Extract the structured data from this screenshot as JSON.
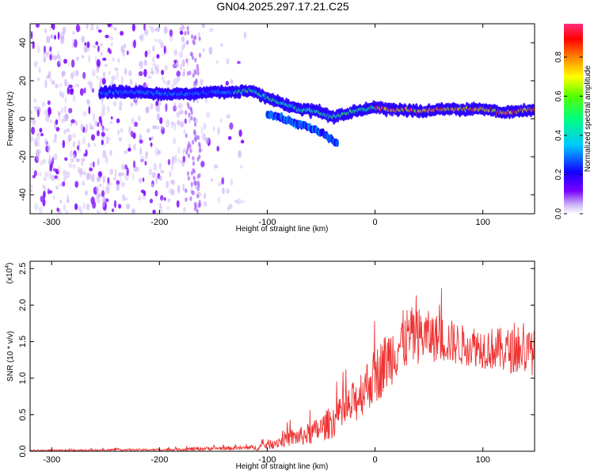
{
  "title": "GN04.2025.297.17.21.C25",
  "chart_data": [
    {
      "type": "heatmap",
      "xlabel": "Height of straight line (km)",
      "ylabel": "Frequency (Hz)",
      "xlim": [
        -320,
        148
      ],
      "ylim": [
        -50,
        50
      ],
      "xticks": [
        -300,
        -200,
        -100,
        0,
        100
      ],
      "yticks": [
        -40,
        -20,
        0,
        20,
        40
      ],
      "colorbar": {
        "label": "Normalized spectral amplitude",
        "range": [
          0.0,
          0.97
        ],
        "ticks": [
          0.0,
          0.2,
          0.4,
          0.6,
          0.8
        ],
        "colors": [
          "#ffffff",
          "#c9b0f5",
          "#7b00ff",
          "#1400ff",
          "#00c8ff",
          "#00ff7f",
          "#55ff00",
          "#ffff00",
          "#ff8800",
          "#ff0000",
          "#ff2d7a"
        ]
      },
      "ridge": {
        "x": [
          -250,
          -220,
          -190,
          -170,
          -150,
          -130,
          -115,
          -100,
          -85,
          -70,
          -55,
          -40,
          -25,
          -10,
          0,
          10,
          25,
          40,
          60,
          80,
          100,
          120,
          148
        ],
        "frequency": [
          14,
          14,
          13,
          13,
          14,
          14,
          15,
          11,
          8,
          5,
          4,
          1,
          3,
          5,
          6,
          5,
          5,
          4,
          5,
          5,
          5,
          3,
          5
        ]
      },
      "secondary_ridge": {
        "x": [
          -100,
          -85,
          -70,
          -55,
          -45,
          -35
        ],
        "frequency": [
          3,
          0,
          -3,
          -6,
          -9,
          -13
        ]
      }
    },
    {
      "type": "line",
      "xlabel": "Height of straight line (km)",
      "ylabel": "SNR (10 * v/v)",
      "y_multiplier": "(x10",
      "y_multiplier_exp": "4",
      "y_multiplier_close": ")",
      "xlim": [
        -320,
        148
      ],
      "ylim": [
        0,
        2.6
      ],
      "xticks": [
        -300,
        -200,
        -100,
        0,
        100
      ],
      "yticks": [
        0.0,
        0.5,
        1.0,
        1.5,
        2.0,
        2.5
      ],
      "xtick_labels": [
        "-300",
        "-200",
        "-100",
        "0",
        "100"
      ],
      "ytick_labels": [
        "0.0",
        "0.5",
        "1.0",
        "1.5",
        "2.0",
        "2.5"
      ],
      "color": "#ee3333",
      "series": [
        {
          "x": [
            -320,
            -280,
            -240,
            -200,
            -170,
            -150,
            -130,
            -110,
            -100,
            -90,
            -80,
            -70,
            -60,
            -50,
            -40,
            -30,
            -20,
            -10,
            0,
            10,
            20,
            30,
            40,
            50,
            60,
            70,
            80,
            90,
            100,
            110,
            120,
            130,
            140,
            148
          ],
          "values": [
            0.01,
            0.01,
            0.02,
            0.02,
            0.03,
            0.04,
            0.04,
            0.05,
            0.09,
            0.13,
            0.18,
            0.2,
            0.24,
            0.31,
            0.41,
            0.5,
            0.65,
            0.87,
            1.02,
            1.22,
            1.42,
            1.55,
            1.58,
            1.57,
            1.54,
            1.5,
            1.45,
            1.45,
            1.42,
            1.4,
            1.38,
            1.37,
            1.36,
            1.35
          ],
          "spread": [
            0.01,
            0.01,
            0.01,
            0.01,
            0.02,
            0.02,
            0.02,
            0.03,
            0.05,
            0.07,
            0.09,
            0.1,
            0.12,
            0.14,
            0.18,
            0.2,
            0.24,
            0.27,
            0.3,
            0.32,
            0.33,
            0.33,
            0.3,
            0.27,
            0.25,
            0.24,
            0.22,
            0.22,
            0.22,
            0.23,
            0.24,
            0.24,
            0.24,
            0.24
          ]
        }
      ]
    }
  ]
}
